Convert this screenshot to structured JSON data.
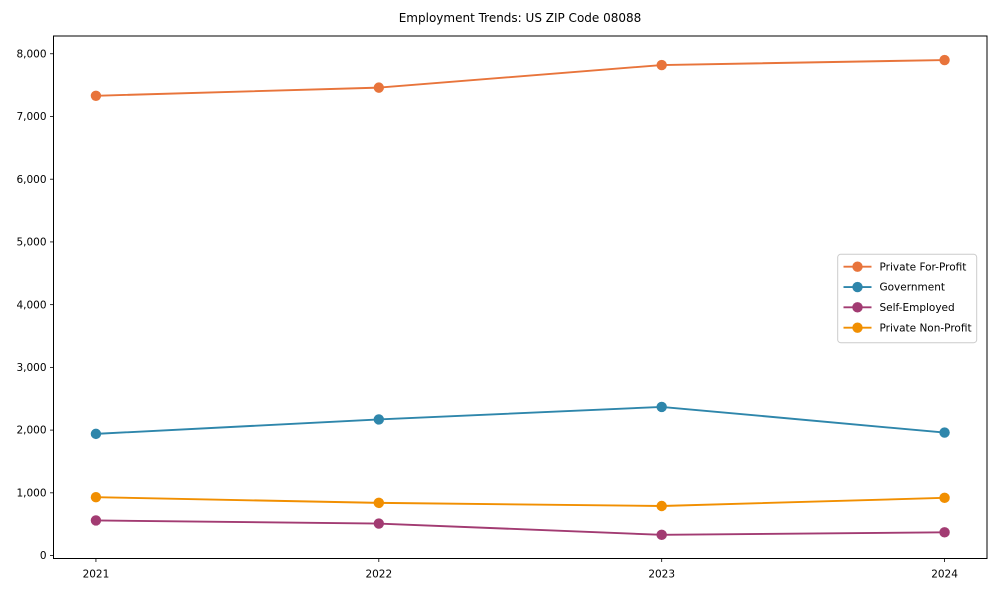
{
  "chart_data": {
    "type": "line",
    "title": "Employment Trends: US ZIP Code 08088",
    "xlabel": "",
    "ylabel": "",
    "x": [
      2021,
      2022,
      2023,
      2024
    ],
    "x_tick_labels": [
      "2021",
      "2022",
      "2023",
      "2024"
    ],
    "y_ticks": [
      0,
      1000,
      2000,
      3000,
      4000,
      5000,
      6000,
      7000,
      8000
    ],
    "y_tick_labels": [
      "0",
      "1,000",
      "2,000",
      "3,000",
      "4,000",
      "5,000",
      "6,000",
      "7,000",
      "8,000"
    ],
    "xlim": [
      2020.85,
      2024.15
    ],
    "ylim": [
      -47,
      8283
    ],
    "grid": false,
    "legend_position": "center-right",
    "series": [
      {
        "name": "Private For-Profit",
        "color": "#E8743B",
        "values": [
          7330,
          7460,
          7820,
          7900
        ]
      },
      {
        "name": "Government",
        "color": "#2E86AB",
        "values": [
          1940,
          2170,
          2370,
          1960
        ]
      },
      {
        "name": "Self-Employed",
        "color": "#A23B72",
        "values": [
          560,
          510,
          330,
          370
        ]
      },
      {
        "name": "Private Non-Profit",
        "color": "#F18F01",
        "values": [
          930,
          840,
          790,
          920
        ]
      }
    ],
    "marker": "circle",
    "marker_radius": 5.2,
    "line_width": 1.9
  }
}
